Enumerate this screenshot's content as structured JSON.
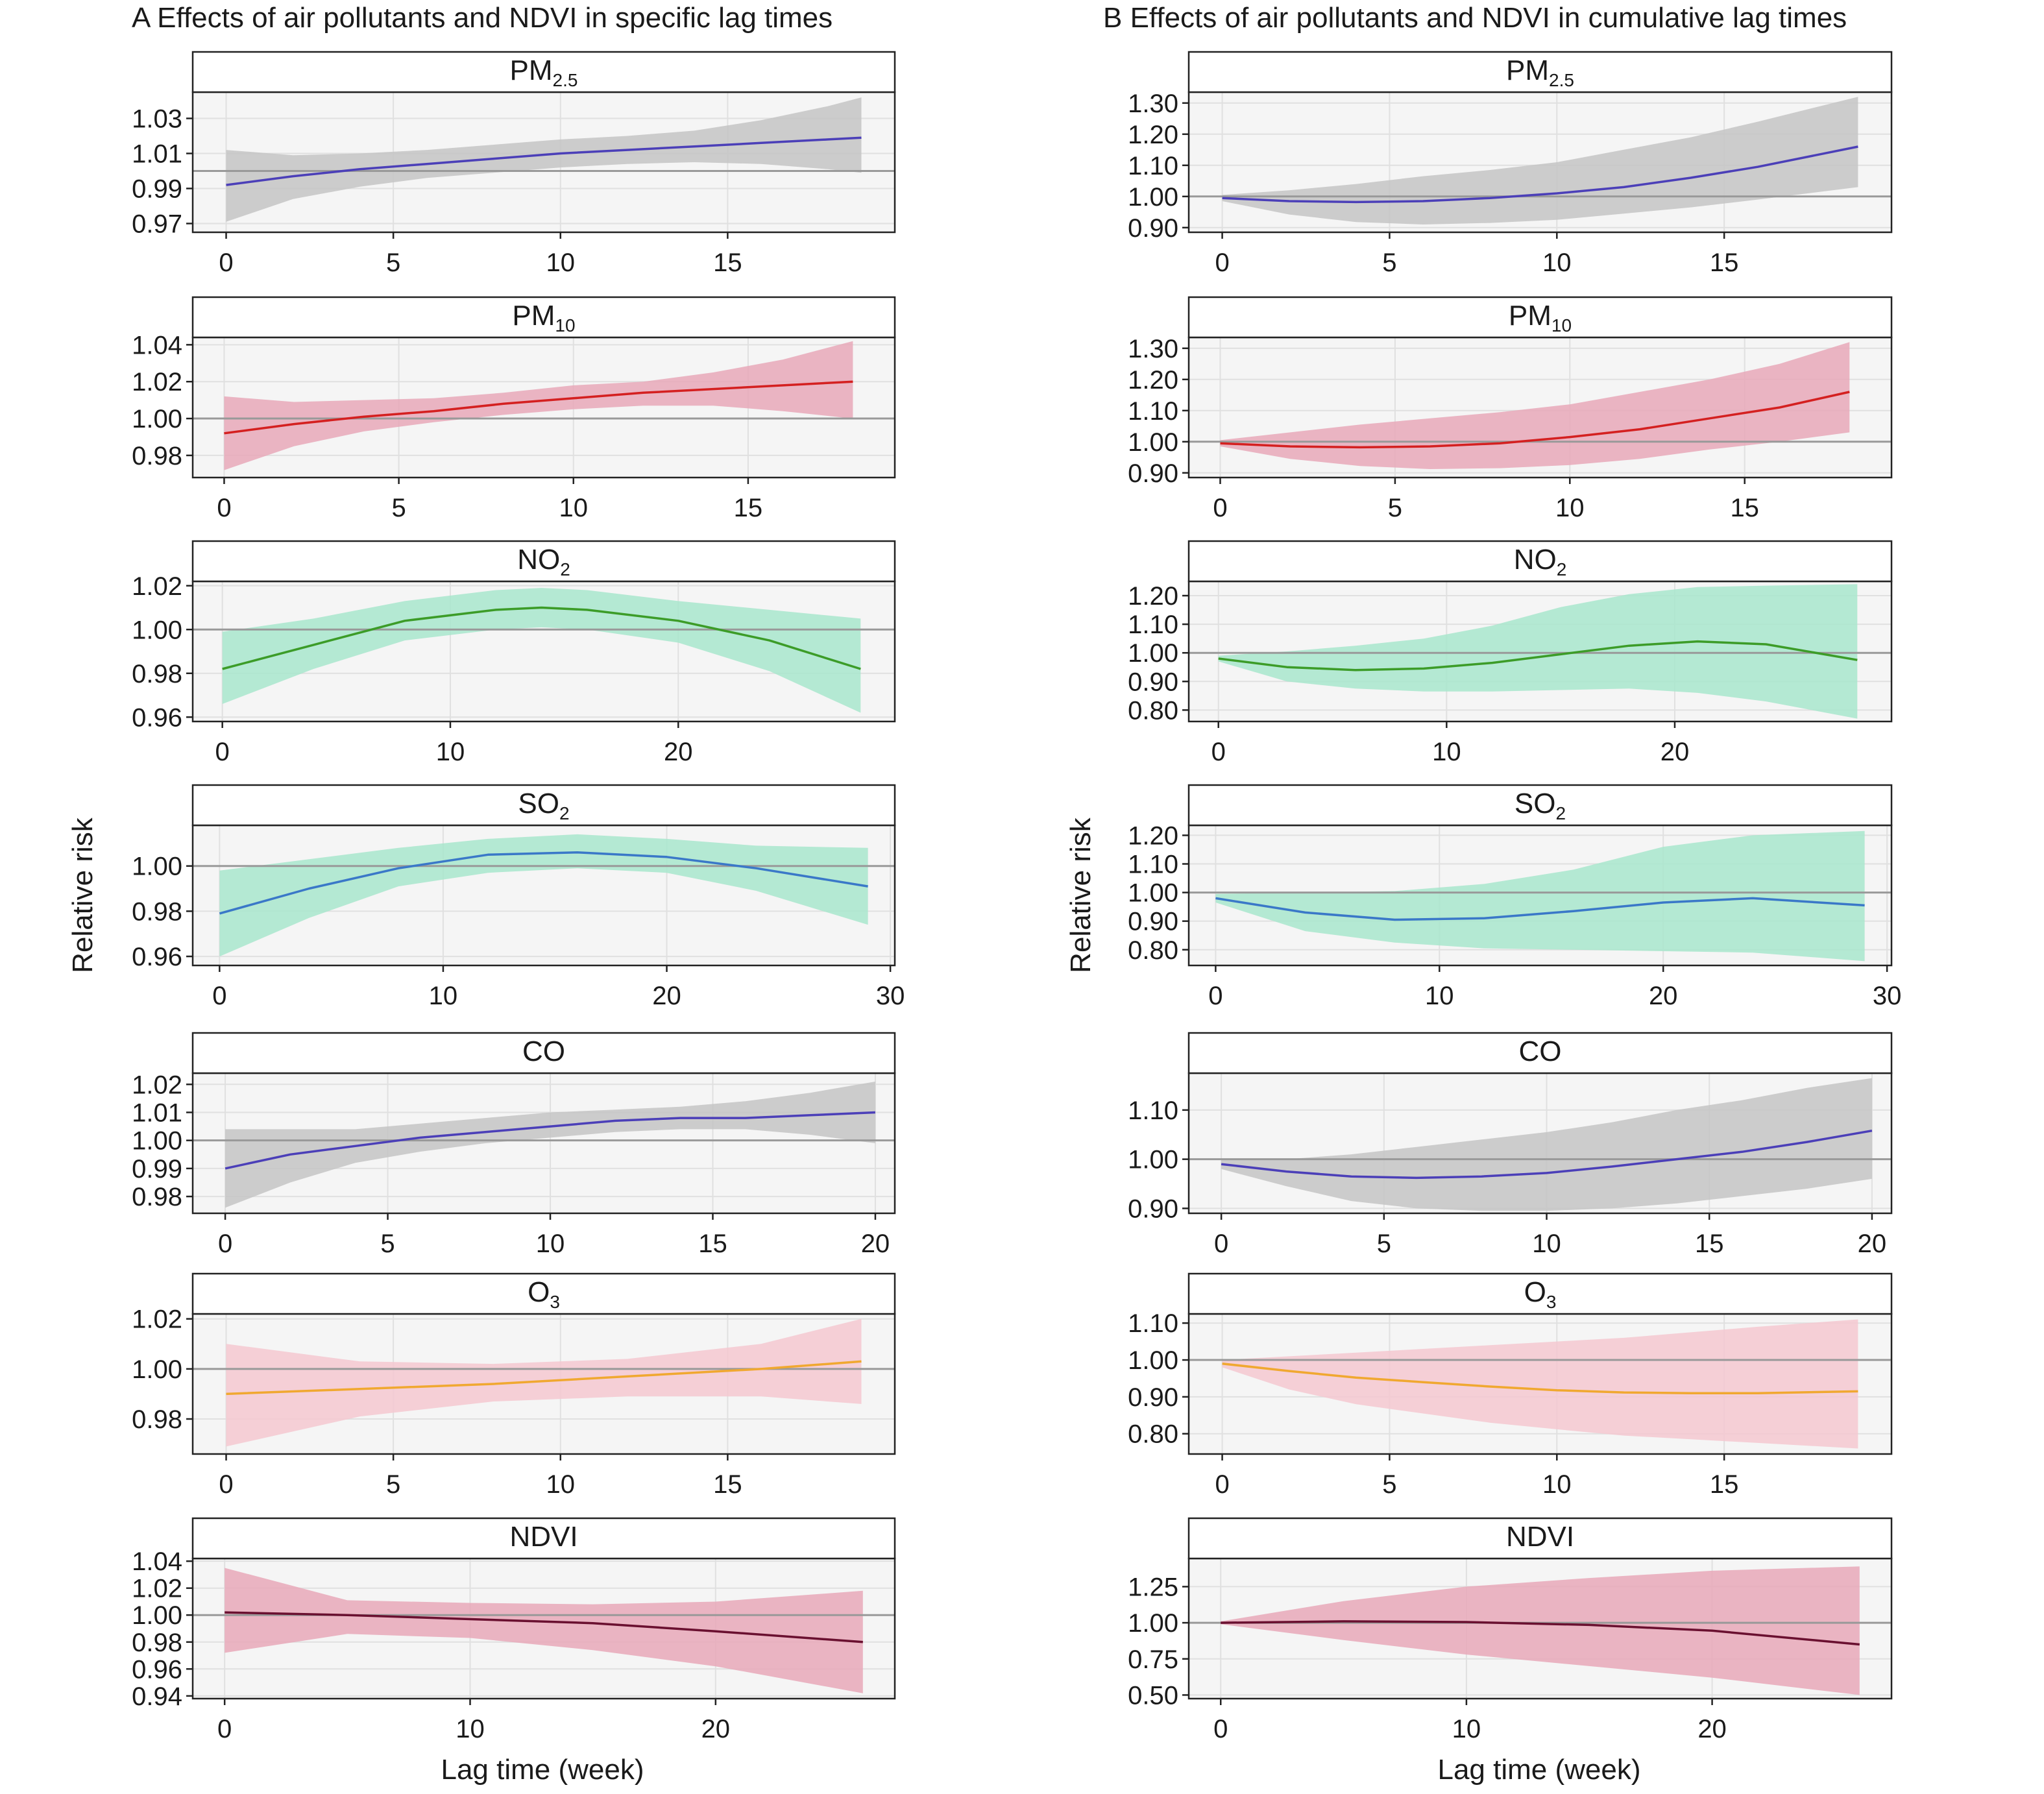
{
  "chart_data": {
    "type": "line",
    "columns": [
      {
        "title": "A  Effects of air pollutants and NDVI in specific lag times",
        "ylabel": "Relative risk",
        "xlabel": "Lag time (week)"
      },
      {
        "title": "B  Effects of air pollutants and NDVI in cumulative lag times",
        "ylabel": "Relative risk",
        "xlabel": "Lag time (week)"
      }
    ],
    "panels": [
      {
        "col": 0,
        "row": 0,
        "strip": "PM",
        "strip_sub": "2.5",
        "line_color": "#4b3fb8",
        "band_fill": "#c4c4c4",
        "x": [
          0,
          2,
          4,
          6,
          8,
          10,
          12,
          14,
          16,
          18,
          19
        ],
        "y": [
          0.992,
          0.997,
          1.001,
          1.004,
          1.007,
          1.01,
          1.012,
          1.014,
          1.016,
          1.018,
          1.019
        ],
        "lower": [
          0.971,
          0.984,
          0.991,
          0.996,
          0.999,
          1.002,
          1.004,
          1.005,
          1.004,
          1.001,
          0.999
        ],
        "upper": [
          1.012,
          1.009,
          1.01,
          1.012,
          1.015,
          1.018,
          1.02,
          1.023,
          1.029,
          1.037,
          1.042
        ],
        "xlim": [
          -1,
          20
        ],
        "xticks": [
          0,
          5,
          10,
          15
        ],
        "xtick_labels": [
          "0",
          "5",
          "10",
          "15"
        ],
        "ylim": [
          0.965,
          1.045
        ],
        "yticks": [
          0.97,
          0.99,
          1.01,
          1.03
        ],
        "ytick_labels": [
          "0.97",
          "0.99",
          "1.01",
          "1.03"
        ],
        "ref": 1.0
      },
      {
        "col": 0,
        "row": 1,
        "strip": "PM",
        "strip_sub": "10",
        "line_color": "#d42020",
        "band_fill": "#e8a8b8",
        "x": [
          0,
          2,
          4,
          6,
          8,
          10,
          12,
          14,
          16,
          18
        ],
        "y": [
          0.992,
          0.997,
          1.001,
          1.004,
          1.008,
          1.011,
          1.014,
          1.016,
          1.018,
          1.02
        ],
        "lower": [
          0.972,
          0.985,
          0.993,
          0.998,
          1.002,
          1.005,
          1.007,
          1.007,
          1.004,
          1.0
        ],
        "upper": [
          1.012,
          1.009,
          1.01,
          1.011,
          1.014,
          1.018,
          1.02,
          1.025,
          1.032,
          1.042
        ],
        "xlim": [
          -0.9,
          19.2
        ],
        "xticks": [
          0,
          5,
          10,
          15
        ],
        "xtick_labels": [
          "0",
          "5",
          "10",
          "15"
        ],
        "ylim": [
          0.968,
          1.044
        ],
        "yticks": [
          0.98,
          1.0,
          1.02,
          1.04
        ],
        "ytick_labels": [
          "0.98",
          "1.00",
          "1.02",
          "1.04"
        ],
        "ref": 1.0
      },
      {
        "col": 0,
        "row": 2,
        "strip": "NO",
        "strip_sub": "2",
        "line_color": "#3c9c28",
        "band_fill": "#a8e6cc",
        "x": [
          0,
          4,
          8,
          12,
          14,
          16,
          20,
          24,
          28
        ],
        "y": [
          0.982,
          0.993,
          1.004,
          1.009,
          1.01,
          1.009,
          1.004,
          0.995,
          0.982
        ],
        "lower": [
          0.966,
          0.982,
          0.995,
          1.0,
          1.001,
          1.0,
          0.994,
          0.981,
          0.962
        ],
        "upper": [
          0.999,
          1.005,
          1.013,
          1.018,
          1.019,
          1.018,
          1.013,
          1.009,
          1.005
        ],
        "xlim": [
          -1.3,
          29.5
        ],
        "xticks": [
          0,
          10,
          20
        ],
        "xtick_labels": [
          "0",
          "10",
          "20"
        ],
        "ylim": [
          0.958,
          1.022
        ],
        "yticks": [
          0.96,
          0.98,
          1.0,
          1.02
        ],
        "ytick_labels": [
          "0.96",
          "0.98",
          "1.00",
          "1.02"
        ],
        "ref": 1.0
      },
      {
        "col": 0,
        "row": 3,
        "strip": "SO",
        "strip_sub": "2",
        "line_color": "#3a78c8",
        "band_fill": "#a8e6cc",
        "x": [
          0,
          4,
          8,
          12,
          16,
          20,
          24,
          29
        ],
        "y": [
          0.979,
          0.99,
          0.999,
          1.005,
          1.006,
          1.004,
          0.999,
          0.991
        ],
        "lower": [
          0.96,
          0.977,
          0.991,
          0.997,
          0.999,
          0.997,
          0.989,
          0.974
        ],
        "upper": [
          0.998,
          1.003,
          1.008,
          1.012,
          1.014,
          1.012,
          1.009,
          1.008
        ],
        "xlim": [
          -1.2,
          30.2
        ],
        "xticks": [
          0,
          10,
          20,
          30
        ],
        "xtick_labels": [
          "0",
          "10",
          "20",
          "30"
        ],
        "ylim": [
          0.956,
          1.018
        ],
        "yticks": [
          0.96,
          0.98,
          1.0
        ],
        "ytick_labels": [
          "0.96",
          "0.98",
          "1.00"
        ],
        "ref": 1.0
      },
      {
        "col": 0,
        "row": 4,
        "strip": "CO",
        "strip_sub": "",
        "line_color": "#4b3fb8",
        "band_fill": "#c4c4c4",
        "x": [
          0,
          2,
          4,
          6,
          8,
          10,
          12,
          14,
          16,
          18,
          20
        ],
        "y": [
          0.99,
          0.995,
          0.998,
          1.001,
          1.003,
          1.005,
          1.007,
          1.008,
          1.008,
          1.009,
          1.01
        ],
        "lower": [
          0.976,
          0.985,
          0.992,
          0.996,
          0.999,
          1.001,
          1.003,
          1.004,
          1.004,
          1.002,
          0.999
        ],
        "upper": [
          1.004,
          1.004,
          1.004,
          1.006,
          1.008,
          1.01,
          1.011,
          1.012,
          1.014,
          1.017,
          1.021
        ],
        "xlim": [
          -1,
          20.6
        ],
        "xticks": [
          0,
          5,
          10,
          15,
          20
        ],
        "xtick_labels": [
          "0",
          "5",
          "10",
          "15",
          "20"
        ],
        "ylim": [
          0.974,
          1.024
        ],
        "yticks": [
          0.98,
          0.99,
          1.0,
          1.01,
          1.02
        ],
        "ytick_labels": [
          "0.98",
          "0.99",
          "1.00",
          "1.01",
          "1.02"
        ],
        "ref": 1.0
      },
      {
        "col": 0,
        "row": 5,
        "strip": "O",
        "strip_sub": "3",
        "line_color": "#f0a830",
        "band_fill": "#f4c8d0",
        "x": [
          0,
          4,
          8,
          12,
          16,
          19
        ],
        "y": [
          0.99,
          0.992,
          0.994,
          0.997,
          1.0,
          1.003
        ],
        "lower": [
          0.969,
          0.981,
          0.987,
          0.989,
          0.989,
          0.986
        ],
        "upper": [
          1.01,
          1.003,
          1.002,
          1.004,
          1.01,
          1.02
        ],
        "xlim": [
          -1,
          20
        ],
        "xticks": [
          0,
          5,
          10,
          15
        ],
        "xtick_labels": [
          "0",
          "5",
          "10",
          "15"
        ],
        "ylim": [
          0.966,
          1.022
        ],
        "yticks": [
          0.98,
          1.0,
          1.02
        ],
        "ytick_labels": [
          "0.98",
          "1.00",
          "1.02"
        ],
        "ref": 1.0
      },
      {
        "col": 0,
        "row": 6,
        "strip": "NDVI",
        "strip_sub": "",
        "line_color": "#6a1030",
        "band_fill": "#e8a8b8",
        "x": [
          0,
          5,
          10,
          15,
          20,
          26
        ],
        "y": [
          1.002,
          1.0,
          0.997,
          0.994,
          0.988,
          0.98
        ],
        "lower": [
          0.972,
          0.986,
          0.983,
          0.974,
          0.962,
          0.942
        ],
        "upper": [
          1.035,
          1.011,
          1.009,
          1.008,
          1.01,
          1.018
        ],
        "xlim": [
          -1.3,
          27.3
        ],
        "xticks": [
          0,
          10,
          20
        ],
        "xtick_labels": [
          "0",
          "10",
          "20"
        ],
        "ylim": [
          0.938,
          1.042
        ],
        "yticks": [
          0.94,
          0.96,
          0.98,
          1.0,
          1.02,
          1.04
        ],
        "ytick_labels": [
          "0.94",
          "0.96",
          "0.98",
          "1.00",
          "1.02",
          "1.04"
        ],
        "ref": 1.0
      },
      {
        "col": 1,
        "row": 0,
        "strip": "PM",
        "strip_sub": "2.5",
        "line_color": "#4b3fb8",
        "band_fill": "#c4c4c4",
        "x": [
          0,
          2,
          4,
          6,
          8,
          10,
          12,
          14,
          16,
          19
        ],
        "y": [
          0.995,
          0.985,
          0.982,
          0.985,
          0.995,
          1.01,
          1.03,
          1.06,
          1.095,
          1.16
        ],
        "lower": [
          0.985,
          0.942,
          0.918,
          0.91,
          0.915,
          0.925,
          0.945,
          0.965,
          0.99,
          1.03
        ],
        "upper": [
          1.005,
          1.02,
          1.04,
          1.065,
          1.085,
          1.11,
          1.15,
          1.19,
          1.24,
          1.32
        ],
        "xlim": [
          -1,
          20
        ],
        "xticks": [
          0,
          5,
          10,
          15
        ],
        "xtick_labels": [
          "0",
          "5",
          "10",
          "15"
        ],
        "ylim": [
          0.885,
          1.335
        ],
        "yticks": [
          0.9,
          1.0,
          1.1,
          1.2,
          1.3
        ],
        "ytick_labels": [
          "0.90",
          "1.00",
          "1.10",
          "1.20",
          "1.30"
        ],
        "ref": 1.0
      },
      {
        "col": 1,
        "row": 1,
        "strip": "PM",
        "strip_sub": "10",
        "line_color": "#d42020",
        "band_fill": "#e8a8b8",
        "x": [
          0,
          2,
          4,
          6,
          8,
          10,
          12,
          14,
          16,
          18
        ],
        "y": [
          0.995,
          0.985,
          0.982,
          0.985,
          0.995,
          1.015,
          1.04,
          1.075,
          1.11,
          1.16
        ],
        "lower": [
          0.985,
          0.945,
          0.922,
          0.912,
          0.915,
          0.925,
          0.945,
          0.975,
          1.0,
          1.03
        ],
        "upper": [
          1.005,
          1.03,
          1.055,
          1.075,
          1.095,
          1.12,
          1.16,
          1.2,
          1.25,
          1.32
        ],
        "xlim": [
          -0.9,
          19.2
        ],
        "xticks": [
          0,
          5,
          10,
          15
        ],
        "xtick_labels": [
          "0",
          "5",
          "10",
          "15"
        ],
        "ylim": [
          0.885,
          1.335
        ],
        "yticks": [
          0.9,
          1.0,
          1.1,
          1.2,
          1.3
        ],
        "ytick_labels": [
          "0.90",
          "1.00",
          "1.10",
          "1.20",
          "1.30"
        ],
        "ref": 1.0
      },
      {
        "col": 1,
        "row": 2,
        "strip": "NO",
        "strip_sub": "2",
        "line_color": "#3c9c28",
        "band_fill": "#a8e6cc",
        "x": [
          0,
          3,
          6,
          9,
          12,
          15,
          18,
          21,
          24,
          28
        ],
        "y": [
          0.98,
          0.95,
          0.94,
          0.945,
          0.965,
          0.995,
          1.025,
          1.04,
          1.03,
          0.975
        ],
        "lower": [
          0.97,
          0.9,
          0.875,
          0.865,
          0.865,
          0.87,
          0.875,
          0.86,
          0.83,
          0.77
        ],
        "upper": [
          0.99,
          1.005,
          1.025,
          1.05,
          1.095,
          1.16,
          1.205,
          1.23,
          1.235,
          1.24
        ],
        "xlim": [
          -1.3,
          29.5
        ],
        "xticks": [
          0,
          10,
          20
        ],
        "xtick_labels": [
          "0",
          "10",
          "20"
        ],
        "ylim": [
          0.76,
          1.25
        ],
        "yticks": [
          0.8,
          0.9,
          1.0,
          1.1,
          1.2
        ],
        "ytick_labels": [
          "0.80",
          "0.90",
          "1.00",
          "1.10",
          "1.20"
        ],
        "ref": 1.0
      },
      {
        "col": 1,
        "row": 3,
        "strip": "SO",
        "strip_sub": "2",
        "line_color": "#3a78c8",
        "band_fill": "#a8e6cc",
        "x": [
          0,
          4,
          8,
          12,
          16,
          20,
          24,
          29
        ],
        "y": [
          0.98,
          0.93,
          0.905,
          0.91,
          0.935,
          0.965,
          0.98,
          0.955
        ],
        "lower": [
          0.965,
          0.865,
          0.825,
          0.805,
          0.8,
          0.795,
          0.79,
          0.76
        ],
        "upper": [
          0.995,
          1.0,
          1.005,
          1.03,
          1.08,
          1.16,
          1.2,
          1.215
        ],
        "xlim": [
          -1.2,
          30.2
        ],
        "xticks": [
          0,
          10,
          20,
          30
        ],
        "xtick_labels": [
          "0",
          "10",
          "20",
          "30"
        ],
        "ylim": [
          0.745,
          1.235
        ],
        "yticks": [
          0.8,
          0.9,
          1.0,
          1.1,
          1.2
        ],
        "ytick_labels": [
          "0.80",
          "0.90",
          "1.00",
          "1.10",
          "1.20"
        ],
        "ref": 1.0
      },
      {
        "col": 1,
        "row": 4,
        "strip": "CO",
        "strip_sub": "",
        "line_color": "#4b3fb8",
        "band_fill": "#c4c4c4",
        "x": [
          0,
          2,
          4,
          6,
          8,
          10,
          12,
          14,
          16,
          18,
          20
        ],
        "y": [
          0.99,
          0.975,
          0.965,
          0.962,
          0.965,
          0.972,
          0.985,
          1.0,
          1.015,
          1.035,
          1.058
        ],
        "lower": [
          0.98,
          0.945,
          0.915,
          0.9,
          0.895,
          0.895,
          0.9,
          0.91,
          0.925,
          0.94,
          0.96
        ],
        "upper": [
          1.0,
          1.0,
          1.01,
          1.025,
          1.04,
          1.055,
          1.075,
          1.1,
          1.12,
          1.145,
          1.165
        ],
        "xlim": [
          -1,
          20.6
        ],
        "xticks": [
          0,
          5,
          10,
          15,
          20
        ],
        "xtick_labels": [
          "0",
          "5",
          "10",
          "15",
          "20"
        ],
        "ylim": [
          0.89,
          1.175
        ],
        "yticks": [
          0.9,
          1.0,
          1.1
        ],
        "ytick_labels": [
          "0.90",
          "1.00",
          "1.10"
        ],
        "ref": 1.0
      },
      {
        "col": 1,
        "row": 5,
        "strip": "O",
        "strip_sub": "3",
        "line_color": "#f0a830",
        "band_fill": "#f4c8d0",
        "x": [
          0,
          2,
          4,
          6,
          8,
          10,
          12,
          14,
          16,
          19
        ],
        "y": [
          0.99,
          0.97,
          0.952,
          0.94,
          0.928,
          0.918,
          0.912,
          0.91,
          0.91,
          0.915
        ],
        "lower": [
          0.98,
          0.92,
          0.88,
          0.855,
          0.83,
          0.812,
          0.795,
          0.785,
          0.775,
          0.76
        ],
        "upper": [
          1.0,
          1.01,
          1.02,
          1.03,
          1.04,
          1.05,
          1.06,
          1.075,
          1.09,
          1.11
        ],
        "xlim": [
          -1,
          20
        ],
        "xticks": [
          0,
          5,
          10,
          15
        ],
        "xtick_labels": [
          "0",
          "5",
          "10",
          "15"
        ],
        "ylim": [
          0.745,
          1.125
        ],
        "yticks": [
          0.8,
          0.9,
          1.0,
          1.1
        ],
        "ytick_labels": [
          "0.80",
          "0.90",
          "1.00",
          "1.10"
        ],
        "ref": 1.0
      },
      {
        "col": 1,
        "row": 6,
        "strip": "NDVI",
        "strip_sub": "",
        "line_color": "#6a1030",
        "band_fill": "#e8a8b8",
        "x": [
          0,
          5,
          10,
          15,
          20,
          26
        ],
        "y": [
          1.0,
          1.01,
          1.005,
          0.985,
          0.945,
          0.85
        ],
        "lower": [
          0.99,
          0.88,
          0.78,
          0.7,
          0.62,
          0.5
        ],
        "upper": [
          1.01,
          1.15,
          1.25,
          1.31,
          1.36,
          1.39
        ],
        "xlim": [
          -1.3,
          27.3
        ],
        "xticks": [
          0,
          10,
          20
        ],
        "xtick_labels": [
          "0",
          "10",
          "20"
        ],
        "ylim": [
          0.475,
          1.445
        ],
        "yticks": [
          0.5,
          0.75,
          1.0,
          1.25
        ],
        "ytick_labels": [
          "0.50",
          "0.75",
          "1.00",
          "1.25"
        ],
        "ref": 1.0
      }
    ]
  }
}
